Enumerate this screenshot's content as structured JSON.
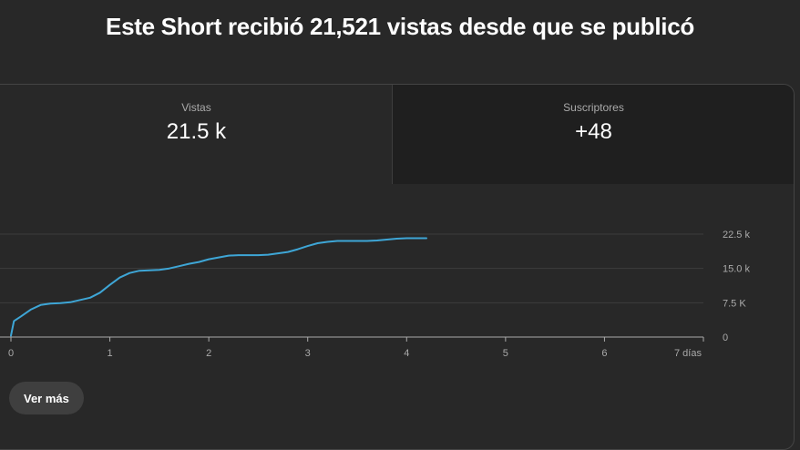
{
  "header": {
    "title": "Este Short recibió 21,521 vistas desde que se publicó"
  },
  "metrics": {
    "views": {
      "label": "Vistas",
      "value": "21.5 k"
    },
    "subscribers": {
      "label": "Suscriptores",
      "value": "+48"
    }
  },
  "chart_data": {
    "type": "line",
    "x_unit_label": "días",
    "x_ticks": [
      "0",
      "1",
      "2",
      "3",
      "4",
      "5",
      "6",
      "7 días"
    ],
    "y_ticks": [
      "0",
      "7.5 K",
      "15.0 k",
      "22.5 k"
    ],
    "xlim": [
      0,
      7
    ],
    "ylim": [
      0,
      22500
    ],
    "grid": true,
    "colors": {
      "line": "#3ea6d6",
      "grid": "#3d3d3d",
      "axis": "#aaaaaa"
    },
    "series": [
      {
        "x": [
          0,
          0.03,
          0.1,
          0.2,
          0.3,
          0.4,
          0.5,
          0.6,
          0.7,
          0.8,
          0.9,
          1.0,
          1.1,
          1.2,
          1.3,
          1.4,
          1.5,
          1.6,
          1.7,
          1.8,
          1.9,
          2.0,
          2.1,
          2.2,
          2.3,
          2.4,
          2.5,
          2.6,
          2.7,
          2.8,
          2.9,
          3.0,
          3.1,
          3.2,
          3.3,
          3.4,
          3.5,
          3.6,
          3.7,
          3.8,
          3.9,
          4.0,
          4.1,
          4.2
        ],
        "y": [
          300,
          3500,
          4500,
          6000,
          7000,
          7300,
          7400,
          7600,
          8100,
          8600,
          9700,
          11400,
          13000,
          14000,
          14500,
          14600,
          14700,
          15000,
          15500,
          16000,
          16400,
          17000,
          17400,
          17800,
          17900,
          17900,
          17900,
          18000,
          18300,
          18600,
          19200,
          19900,
          20500,
          20800,
          21000,
          21000,
          21000,
          21000,
          21100,
          21300,
          21500,
          21600,
          21600,
          21600
        ]
      }
    ]
  },
  "actions": {
    "more_label": "Ver más"
  }
}
